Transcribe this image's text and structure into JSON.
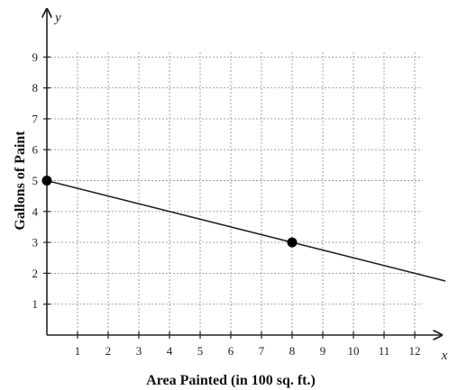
{
  "chart_data": {
    "type": "line",
    "title": "",
    "xlabel": "Area Painted (in 100 sq. ft.)",
    "ylabel": "Gallons of Paint",
    "x_axis_name": "x",
    "y_axis_name": "y",
    "xlim": [
      0,
      13
    ],
    "ylim": [
      0,
      10
    ],
    "x_ticks": [
      "1",
      "2",
      "3",
      "4",
      "5",
      "6",
      "7",
      "8",
      "9",
      "10",
      "11",
      "12"
    ],
    "y_ticks": [
      "1",
      "2",
      "3",
      "4",
      "5",
      "6",
      "7",
      "8",
      "9"
    ],
    "grid": true,
    "series": [
      {
        "line": {
          "x": [
            0,
            13
          ],
          "y": [
            5,
            1.75
          ]
        },
        "points": [
          {
            "x": 0,
            "y": 5
          },
          {
            "x": 8,
            "y": 3
          }
        ]
      }
    ],
    "colors": {
      "line": "#222222",
      "grid": "#9a9a9a",
      "axis": "#222222",
      "point": "#000000"
    }
  }
}
